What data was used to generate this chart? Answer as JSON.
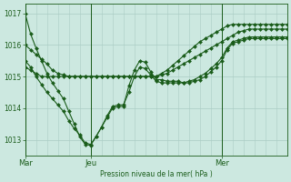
{
  "bg_color": "#cce8e0",
  "grid_color": "#aaccc4",
  "line_color": "#1a5c1a",
  "marker_color": "#1a5c1a",
  "xlabel": "Pression niveau de la mer( hPa )",
  "ylim": [
    1012.5,
    1017.3
  ],
  "yticks": [
    1013,
    1014,
    1015,
    1016,
    1017
  ],
  "xtick_labels": [
    "Mar",
    "Jeu",
    "Mer"
  ],
  "xtick_positions": [
    0,
    12,
    36
  ],
  "xlim": [
    0,
    48
  ],
  "n_points": 49,
  "series": [
    [
      1017.0,
      1016.35,
      1015.9,
      1015.5,
      1015.1,
      1014.8,
      1014.55,
      1014.3,
      1013.9,
      1013.5,
      1013.1,
      1012.85,
      1012.82,
      1013.1,
      1013.4,
      1013.7,
      1014.0,
      1014.05,
      1014.05,
      1014.7,
      1015.2,
      1015.5,
      1015.45,
      1015.15,
      1014.9,
      1014.9,
      1014.85,
      1014.85,
      1014.85,
      1014.8,
      1014.8,
      1014.85,
      1014.9,
      1015.0,
      1015.15,
      1015.3,
      1015.5,
      1015.85,
      1016.05,
      1016.1,
      1016.15,
      1016.2,
      1016.2,
      1016.2,
      1016.2,
      1016.2,
      1016.2,
      1016.2,
      1016.2
    ],
    [
      1015.3,
      1015.2,
      1015.1,
      1015.0,
      1015.0,
      1015.0,
      1015.0,
      1015.0,
      1015.0,
      1015.0,
      1015.0,
      1015.0,
      1015.0,
      1015.0,
      1015.0,
      1015.0,
      1015.0,
      1015.0,
      1015.0,
      1015.0,
      1015.0,
      1015.0,
      1015.0,
      1015.0,
      1015.0,
      1015.05,
      1015.1,
      1015.2,
      1015.3,
      1015.4,
      1015.5,
      1015.6,
      1015.7,
      1015.8,
      1015.9,
      1016.0,
      1016.1,
      1016.2,
      1016.3,
      1016.4,
      1016.45,
      1016.5,
      1016.5,
      1016.5,
      1016.5,
      1016.5,
      1016.5,
      1016.5,
      1016.5
    ],
    [
      1016.0,
      1015.85,
      1015.7,
      1015.55,
      1015.4,
      1015.2,
      1015.1,
      1015.05,
      1015.0,
      1015.0,
      1015.0,
      1015.0,
      1015.0,
      1015.0,
      1015.0,
      1015.0,
      1015.0,
      1015.0,
      1015.0,
      1015.0,
      1015.0,
      1015.0,
      1015.0,
      1015.0,
      1015.0,
      1015.1,
      1015.2,
      1015.35,
      1015.5,
      1015.65,
      1015.8,
      1015.95,
      1016.1,
      1016.2,
      1016.3,
      1016.4,
      1016.5,
      1016.6,
      1016.65,
      1016.65,
      1016.65,
      1016.65,
      1016.65,
      1016.65,
      1016.65,
      1016.65,
      1016.65,
      1016.65,
      1016.65
    ],
    [
      1015.5,
      1015.3,
      1015.0,
      1014.75,
      1014.5,
      1014.3,
      1014.1,
      1013.9,
      1013.6,
      1013.35,
      1013.15,
      1012.9,
      1012.85,
      1013.1,
      1013.4,
      1013.75,
      1014.05,
      1014.1,
      1014.1,
      1014.5,
      1015.0,
      1015.3,
      1015.25,
      1015.05,
      1014.85,
      1014.8,
      1014.8,
      1014.8,
      1014.8,
      1014.8,
      1014.85,
      1014.9,
      1015.0,
      1015.1,
      1015.25,
      1015.4,
      1015.6,
      1015.9,
      1016.1,
      1016.15,
      1016.2,
      1016.25,
      1016.25,
      1016.25,
      1016.25,
      1016.25,
      1016.25,
      1016.25,
      1016.25
    ]
  ]
}
